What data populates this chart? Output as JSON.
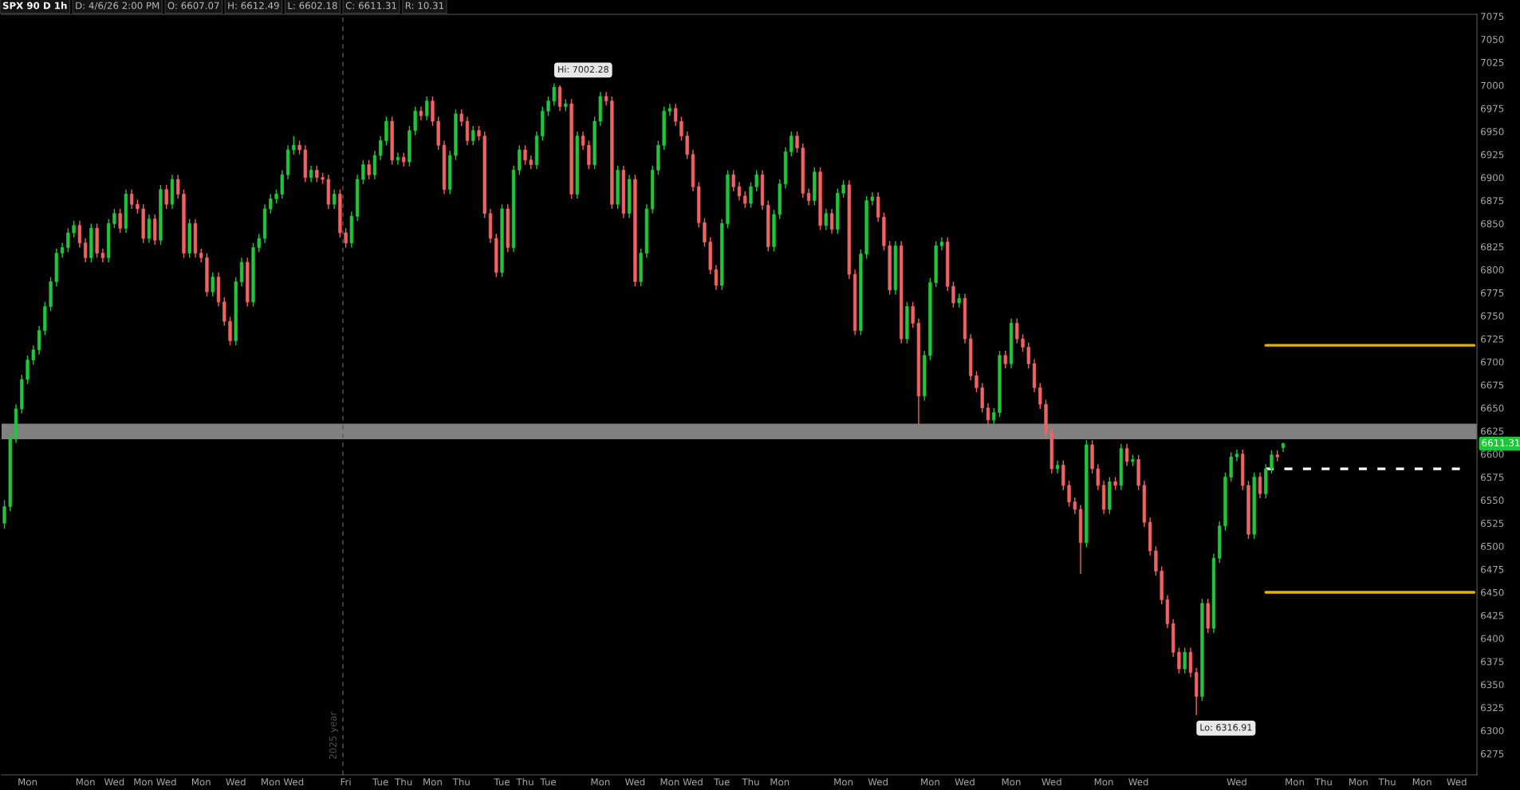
{
  "chart_data": {
    "type": "candlestick",
    "title": "SPX 90 D 1h",
    "annotations": [
      "D: 4/6/26 2:00 PM",
      "O: 6607.07",
      "H: 6612.49",
      "L: 6602.18",
      "C: 6611.31",
      "R: 10.31",
      "Hi: 7002.28",
      "Lo: 6316.91",
      "2025 year",
      "6611.31"
    ],
    "categories": [
      null,
      null,
      null,
      null,
      "Mon",
      null,
      null,
      null,
      null,
      null,
      null,
      null,
      null,
      null,
      "Mon",
      null,
      null,
      null,
      null,
      "Wed",
      null,
      null,
      null,
      null,
      "Mon",
      null,
      null,
      null,
      "Wed",
      null,
      null,
      null,
      null,
      null,
      "Mon",
      null,
      null,
      null,
      null,
      null,
      "Wed",
      null,
      null,
      null,
      null,
      null,
      "Mon",
      null,
      null,
      null,
      "Wed",
      null,
      null,
      null,
      null,
      null,
      null,
      null,
      null,
      "Fri",
      null,
      null,
      null,
      null,
      null,
      "Tue",
      null,
      null,
      null,
      "Thu",
      null,
      null,
      null,
      null,
      "Mon",
      null,
      null,
      null,
      null,
      "Thu",
      null,
      null,
      null,
      null,
      null,
      null,
      "Tue",
      null,
      null,
      null,
      "Thu",
      null,
      null,
      null,
      "Tue",
      null,
      null,
      null,
      null,
      null,
      null,
      null,
      null,
      "Mon",
      null,
      null,
      null,
      null,
      null,
      "Wed",
      null,
      null,
      null,
      null,
      null,
      "Mon",
      null,
      null,
      null,
      "Wed",
      null,
      null,
      null,
      null,
      "Tue",
      null,
      null,
      null,
      null,
      "Thu",
      null,
      null,
      null,
      null,
      "Mon",
      null,
      null,
      null,
      null,
      null,
      null,
      null,
      null,
      null,
      null,
      "Mon",
      null,
      null,
      null,
      null,
      null,
      "Wed",
      null,
      null,
      null,
      null,
      null,
      null,
      null,
      null,
      "Mon",
      null,
      null,
      null,
      null,
      null,
      "Wed",
      null,
      null,
      null,
      null,
      null,
      null,
      null,
      "Mon",
      null,
      null,
      null,
      null,
      null,
      null,
      "Wed",
      null,
      null,
      null,
      null,
      null,
      null,
      null,
      null,
      "Mon",
      null,
      null,
      null,
      null,
      null,
      "Wed",
      null,
      null,
      null,
      null,
      null,
      null,
      null,
      null,
      null,
      null,
      null,
      null,
      null,
      null,
      null,
      null,
      "Wed",
      null,
      null,
      null,
      null,
      null,
      null,
      null,
      null,
      null,
      "Mon",
      null,
      null,
      null,
      null,
      "Thu",
      null,
      null,
      null,
      null,
      null,
      "Mon",
      null,
      null,
      null,
      null,
      "Thu",
      null,
      null,
      null,
      null,
      null,
      "Mon",
      null,
      null,
      null,
      null,
      null,
      "Wed",
      null,
      null,
      null
    ],
    "ohlc": [
      [
        6525,
        6550,
        6519,
        6543
      ],
      [
        6543,
        6622,
        6538,
        6617
      ],
      [
        6617,
        6654,
        6612,
        6649
      ],
      [
        6649,
        6686,
        6644,
        6681
      ],
      [
        6681,
        6707,
        6676,
        6702
      ],
      [
        6702,
        6718,
        6697,
        6713
      ],
      [
        6713,
        6739,
        6708,
        6734
      ],
      [
        6734,
        6765,
        6729,
        6760
      ],
      [
        6760,
        6792,
        6755,
        6787
      ],
      [
        6787,
        6823,
        6782,
        6818
      ],
      [
        6818,
        6829,
        6813,
        6824
      ],
      [
        6824,
        6845,
        6819,
        6840
      ],
      [
        6840,
        6853,
        6835,
        6848
      ],
      [
        6848,
        6853,
        6824,
        6829
      ],
      [
        6829,
        6834,
        6808,
        6813
      ],
      [
        6813,
        6850,
        6808,
        6845
      ],
      [
        6845,
        6850,
        6813,
        6818
      ],
      [
        6818,
        6823,
        6808,
        6813
      ],
      [
        6813,
        6855,
        6808,
        6850
      ],
      [
        6850,
        6866,
        6845,
        6861
      ],
      [
        6861,
        6866,
        6840,
        6845
      ],
      [
        6845,
        6887,
        6840,
        6882
      ],
      [
        6882,
        6887,
        6866,
        6871
      ],
      [
        6871,
        6876,
        6861,
        6866
      ],
      [
        6866,
        6871,
        6829,
        6834
      ],
      [
        6834,
        6860,
        6829,
        6855
      ],
      [
        6855,
        6860,
        6827,
        6832
      ],
      [
        6832,
        6892,
        6827,
        6887
      ],
      [
        6887,
        6892,
        6866,
        6871
      ],
      [
        6871,
        6903,
        6866,
        6898
      ],
      [
        6898,
        6903,
        6877,
        6882
      ],
      [
        6882,
        6887,
        6813,
        6818
      ],
      [
        6818,
        6855,
        6813,
        6850
      ],
      [
        6850,
        6855,
        6813,
        6818
      ],
      [
        6818,
        6823,
        6808,
        6813
      ],
      [
        6813,
        6818,
        6771,
        6776
      ],
      [
        6776,
        6797,
        6771,
        6792
      ],
      [
        6792,
        6797,
        6760,
        6765
      ],
      [
        6765,
        6770,
        6739,
        6744
      ],
      [
        6744,
        6749,
        6718,
        6723
      ],
      [
        6723,
        6792,
        6718,
        6787
      ],
      [
        6787,
        6813,
        6782,
        6808
      ],
      [
        6808,
        6813,
        6760,
        6765
      ],
      [
        6765,
        6829,
        6760,
        6824
      ],
      [
        6824,
        6839,
        6819,
        6834
      ],
      [
        6834,
        6871,
        6829,
        6866
      ],
      [
        6866,
        6882,
        6861,
        6877
      ],
      [
        6877,
        6887,
        6872,
        6882
      ],
      [
        6882,
        6908,
        6877,
        6903
      ],
      [
        6903,
        6935,
        6898,
        6930
      ],
      [
        6930,
        6945,
        6925,
        6935
      ],
      [
        6935,
        6940,
        6925,
        6930
      ],
      [
        6930,
        6935,
        6895,
        6900
      ],
      [
        6900,
        6913,
        6895,
        6908
      ],
      [
        6908,
        6913,
        6895,
        6900
      ],
      [
        6900,
        6905,
        6893,
        6898
      ],
      [
        6898,
        6903,
        6866,
        6871
      ],
      [
        6871,
        6887,
        6866,
        6882
      ],
      [
        6882,
        6887,
        6835,
        6840
      ],
      [
        6840,
        6845,
        6824,
        6829
      ],
      [
        6829,
        6863,
        6824,
        6858
      ],
      [
        6858,
        6903,
        6853,
        6898
      ],
      [
        6898,
        6919,
        6893,
        6914
      ],
      [
        6914,
        6919,
        6898,
        6903
      ],
      [
        6903,
        6929,
        6898,
        6924
      ],
      [
        6924,
        6945,
        6919,
        6940
      ],
      [
        6940,
        6966,
        6935,
        6961
      ],
      [
        6961,
        6966,
        6914,
        6919
      ],
      [
        6919,
        6927,
        6914,
        6922
      ],
      [
        6922,
        6927,
        6912,
        6917
      ],
      [
        6917,
        6956,
        6912,
        6951
      ],
      [
        6951,
        6977,
        6946,
        6972
      ],
      [
        6972,
        6977,
        6962,
        6967
      ],
      [
        6967,
        6988,
        6962,
        6983
      ],
      [
        6983,
        6988,
        6956,
        6961
      ],
      [
        6961,
        6966,
        6930,
        6935
      ],
      [
        6935,
        6940,
        6882,
        6887
      ],
      [
        6887,
        6929,
        6882,
        6924
      ],
      [
        6924,
        6974,
        6919,
        6969
      ],
      [
        6969,
        6974,
        6956,
        6961
      ],
      [
        6961,
        6966,
        6935,
        6940
      ],
      [
        6940,
        6956,
        6935,
        6951
      ],
      [
        6951,
        6956,
        6940,
        6945
      ],
      [
        6945,
        6950,
        6856,
        6861
      ],
      [
        6861,
        6866,
        6829,
        6834
      ],
      [
        6834,
        6839,
        6792,
        6797
      ],
      [
        6797,
        6871,
        6792,
        6866
      ],
      [
        6866,
        6871,
        6819,
        6824
      ],
      [
        6824,
        6913,
        6819,
        6908
      ],
      [
        6908,
        6935,
        6903,
        6930
      ],
      [
        6930,
        6935,
        6914,
        6919
      ],
      [
        6919,
        6924,
        6909,
        6914
      ],
      [
        6914,
        6950,
        6909,
        6945
      ],
      [
        6945,
        6977,
        6940,
        6972
      ],
      [
        6972,
        6988,
        6967,
        6983
      ],
      [
        6983,
        7002.28,
        6978,
        6998
      ],
      [
        6998,
        7000,
        6972,
        6977
      ],
      [
        6977,
        6985,
        6972,
        6980
      ],
      [
        6980,
        6985,
        6877,
        6882
      ],
      [
        6882,
        6950,
        6877,
        6945
      ],
      [
        6945,
        6950,
        6930,
        6935
      ],
      [
        6935,
        6940,
        6909,
        6914
      ],
      [
        6914,
        6966,
        6909,
        6961
      ],
      [
        6961,
        6993,
        6956,
        6988
      ],
      [
        6988,
        6993,
        6978,
        6983
      ],
      [
        6983,
        6988,
        6866,
        6871
      ],
      [
        6871,
        6913,
        6866,
        6908
      ],
      [
        6908,
        6913,
        6856,
        6861
      ],
      [
        6861,
        6903,
        6856,
        6898
      ],
      [
        6898,
        6903,
        6782,
        6787
      ],
      [
        6787,
        6823,
        6782,
        6818
      ],
      [
        6818,
        6871,
        6813,
        6866
      ],
      [
        6866,
        6913,
        6861,
        6908
      ],
      [
        6908,
        6940,
        6903,
        6935
      ],
      [
        6935,
        6977,
        6930,
        6972
      ],
      [
        6972,
        6980,
        6967,
        6975
      ],
      [
        6975,
        6980,
        6956,
        6961
      ],
      [
        6961,
        6966,
        6940,
        6945
      ],
      [
        6945,
        6950,
        6920,
        6925
      ],
      [
        6925,
        6930,
        6885,
        6890
      ],
      [
        6890,
        6895,
        6846,
        6851
      ],
      [
        6851,
        6856,
        6825,
        6830
      ],
      [
        6830,
        6835,
        6795,
        6800
      ],
      [
        6800,
        6805,
        6778,
        6783
      ],
      [
        6783,
        6855,
        6778,
        6850
      ],
      [
        6850,
        6908,
        6845,
        6903
      ],
      [
        6903,
        6908,
        6885,
        6890
      ],
      [
        6890,
        6895,
        6875,
        6880
      ],
      [
        6880,
        6885,
        6867,
        6872
      ],
      [
        6872,
        6895,
        6867,
        6890
      ],
      [
        6890,
        6908,
        6885,
        6903
      ],
      [
        6903,
        6908,
        6865,
        6870
      ],
      [
        6870,
        6875,
        6820,
        6825
      ],
      [
        6825,
        6865,
        6820,
        6860
      ],
      [
        6860,
        6898,
        6855,
        6893
      ],
      [
        6893,
        6933,
        6888,
        6928
      ],
      [
        6928,
        6950,
        6923,
        6945
      ],
      [
        6945,
        6950,
        6927,
        6932
      ],
      [
        6932,
        6937,
        6878,
        6883
      ],
      [
        6883,
        6888,
        6870,
        6875
      ],
      [
        6875,
        6911,
        6870,
        6906
      ],
      [
        6906,
        6911,
        6843,
        6848
      ],
      [
        6848,
        6866,
        6843,
        6861
      ],
      [
        6861,
        6866,
        6839,
        6844
      ],
      [
        6844,
        6888,
        6839,
        6883
      ],
      [
        6883,
        6897,
        6878,
        6892
      ],
      [
        6892,
        6897,
        6790,
        6795
      ],
      [
        6795,
        6800,
        6729,
        6734
      ],
      [
        6734,
        6822,
        6729,
        6817
      ],
      [
        6817,
        6880,
        6812,
        6875
      ],
      [
        6875,
        6884,
        6870,
        6879
      ],
      [
        6879,
        6884,
        6852,
        6857
      ],
      [
        6857,
        6862,
        6821,
        6826
      ],
      [
        6826,
        6831,
        6773,
        6778
      ],
      [
        6778,
        6831,
        6773,
        6826
      ],
      [
        6826,
        6831,
        6720,
        6725
      ],
      [
        6725,
        6765,
        6720,
        6760
      ],
      [
        6760,
        6765,
        6737,
        6742
      ],
      [
        6742,
        6747,
        6632,
        6663
      ],
      [
        6663,
        6712,
        6658,
        6707
      ],
      [
        6707,
        6791,
        6702,
        6786
      ],
      [
        6786,
        6831,
        6781,
        6826
      ],
      [
        6826,
        6835,
        6821,
        6830
      ],
      [
        6830,
        6835,
        6777,
        6782
      ],
      [
        6782,
        6787,
        6759,
        6764
      ],
      [
        6764,
        6774,
        6759,
        6769
      ],
      [
        6769,
        6774,
        6720,
        6725
      ],
      [
        6725,
        6730,
        6680,
        6685
      ],
      [
        6685,
        6690,
        6667,
        6672
      ],
      [
        6672,
        6677,
        6645,
        6650
      ],
      [
        6650,
        6655,
        6632,
        6637
      ],
      [
        6637,
        6650,
        6632,
        6645
      ],
      [
        6645,
        6712,
        6640,
        6707
      ],
      [
        6707,
        6712,
        6693,
        6698
      ],
      [
        6698,
        6747,
        6693,
        6742
      ],
      [
        6742,
        6747,
        6720,
        6725
      ],
      [
        6725,
        6730,
        6711,
        6716
      ],
      [
        6716,
        6721,
        6693,
        6698
      ],
      [
        6698,
        6703,
        6667,
        6672
      ],
      [
        6672,
        6677,
        6649,
        6654
      ],
      [
        6654,
        6659,
        6618,
        6623
      ],
      [
        6623,
        6628,
        6579,
        6584
      ],
      [
        6584,
        6593,
        6579,
        6588
      ],
      [
        6588,
        6593,
        6561,
        6566
      ],
      [
        6566,
        6571,
        6543,
        6548
      ],
      [
        6548,
        6553,
        6535,
        6540
      ],
      [
        6540,
        6545,
        6470,
        6504
      ],
      [
        6504,
        6615,
        6499,
        6610
      ],
      [
        6610,
        6615,
        6579,
        6584
      ],
      [
        6584,
        6589,
        6561,
        6566
      ],
      [
        6566,
        6571,
        6535,
        6540
      ],
      [
        6540,
        6575,
        6535,
        6570
      ],
      [
        6570,
        6575,
        6561,
        6566
      ],
      [
        6566,
        6611,
        6561,
        6606
      ],
      [
        6606,
        6611,
        6587,
        6592
      ],
      [
        6592,
        6599,
        6587,
        6594
      ],
      [
        6594,
        6599,
        6561,
        6566
      ],
      [
        6566,
        6571,
        6521,
        6526
      ],
      [
        6526,
        6531,
        6490,
        6495
      ],
      [
        6495,
        6500,
        6468,
        6473
      ],
      [
        6473,
        6478,
        6437,
        6442
      ],
      [
        6442,
        6447,
        6411,
        6416
      ],
      [
        6416,
        6421,
        6380,
        6385
      ],
      [
        6385,
        6390,
        6362,
        6367
      ],
      [
        6367,
        6390,
        6362,
        6385
      ],
      [
        6385,
        6390,
        6358,
        6363
      ],
      [
        6363,
        6368,
        6316.91,
        6337
      ],
      [
        6337,
        6443,
        6332,
        6438
      ],
      [
        6438,
        6443,
        6406,
        6411
      ],
      [
        6411,
        6492,
        6406,
        6487
      ],
      [
        6487,
        6527,
        6482,
        6522
      ],
      [
        6522,
        6580,
        6517,
        6575
      ],
      [
        6575,
        6602,
        6570,
        6597
      ],
      [
        6597,
        6605,
        6592,
        6600
      ],
      [
        6600,
        6605,
        6561,
        6566
      ],
      [
        6566,
        6571,
        6508,
        6513
      ],
      [
        6513,
        6580,
        6508,
        6575
      ],
      [
        6575,
        6580,
        6552,
        6557
      ],
      [
        6557,
        6589,
        6552,
        6584
      ],
      [
        6584,
        6604,
        6579,
        6599
      ],
      [
        6599,
        6604,
        6592,
        6597
      ],
      [
        6607.07,
        6612.49,
        6602.18,
        6611.31
      ],
      null,
      null,
      null,
      null,
      null,
      null,
      null,
      null,
      null,
      null,
      null,
      null,
      null,
      null,
      null,
      null,
      null,
      null,
      null,
      null,
      null,
      null,
      null,
      null,
      null,
      null,
      null,
      null,
      null,
      null,
      null,
      null,
      null
    ],
    "colors": [
      "#1ec73a",
      "#1ec73a",
      "#1ec73a",
      "#1ec73a",
      "#1ec73a",
      "#1ec73a",
      "#1ec73a",
      "#1ec73a",
      "#1ec73a",
      "#1ec73a",
      "#1ec73a",
      "#1ec73a",
      "#1ec73a",
      "#f26262",
      "#f26262",
      "#1ec73a",
      "#f26262",
      "#f26262",
      "#1ec73a",
      "#1ec73a",
      "#f26262",
      "#1ec73a",
      "#f26262",
      "#f26262",
      "#f26262",
      "#1ec73a",
      "#f26262",
      "#1ec73a",
      "#f26262",
      "#1ec73a",
      "#f26262",
      "#f26262",
      "#1ec73a",
      "#f26262",
      "#f26262",
      "#f26262",
      "#1ec73a",
      "#f26262",
      "#f26262",
      "#f26262",
      "#1ec73a",
      "#1ec73a",
      "#f26262",
      "#1ec73a",
      "#1ec73a",
      "#1ec73a",
      "#1ec73a",
      "#1ec73a",
      "#1ec73a",
      "#1ec73a",
      "#1ec73a",
      "#f26262",
      "#f26262",
      "#1ec73a",
      "#f26262",
      "#f26262",
      "#f26262",
      "#1ec73a",
      "#f26262",
      "#f26262",
      "#1ec73a",
      "#1ec73a",
      "#1ec73a",
      "#f26262",
      "#1ec73a",
      "#1ec73a",
      "#1ec73a",
      "#f26262",
      "#1ec73a",
      "#f26262",
      "#1ec73a",
      "#1ec73a",
      "#f26262",
      "#1ec73a",
      "#f26262",
      "#f26262",
      "#f26262",
      "#1ec73a",
      "#1ec73a",
      "#f26262",
      "#f26262",
      "#1ec73a",
      "#f26262",
      "#f26262",
      "#f26262",
      "#f26262",
      "#1ec73a",
      "#f26262",
      "#1ec73a",
      "#1ec73a",
      "#f26262",
      "#f26262",
      "#1ec73a",
      "#1ec73a",
      "#1ec73a",
      "#1ec73a",
      "#f26262",
      "#1ec73a",
      "#f26262",
      "#1ec73a",
      "#f26262",
      "#f26262",
      "#1ec73a",
      "#1ec73a",
      "#f26262",
      "#f26262",
      "#1ec73a",
      "#f26262",
      "#1ec73a",
      "#f26262",
      "#1ec73a",
      "#1ec73a",
      "#1ec73a",
      "#1ec73a",
      "#1ec73a",
      "#1ec73a",
      "#f26262",
      "#f26262",
      "#f26262",
      "#f26262",
      "#f26262",
      "#f26262",
      "#f26262",
      "#f26262",
      "#1ec73a",
      "#1ec73a",
      "#f26262",
      "#f26262",
      "#f26262",
      "#1ec73a",
      "#1ec73a",
      "#f26262",
      "#f26262",
      "#1ec73a",
      "#1ec73a",
      "#1ec73a",
      "#1ec73a",
      "#f26262",
      "#f26262",
      "#f26262",
      "#1ec73a",
      "#f26262",
      "#1ec73a",
      "#f26262",
      "#1ec73a",
      "#1ec73a",
      "#f26262",
      "#f26262",
      "#1ec73a",
      "#1ec73a",
      "#1ec73a",
      "#f26262",
      "#f26262",
      "#f26262",
      "#1ec73a",
      "#f26262",
      "#1ec73a",
      "#f26262",
      "#f26262",
      "#1ec73a",
      "#1ec73a",
      "#1ec73a",
      "#1ec73a",
      "#f26262",
      "#f26262",
      "#1ec73a",
      "#f26262",
      "#f26262",
      "#f26262",
      "#f26262",
      "#f26262",
      "#1ec73a",
      "#1ec73a",
      "#f26262",
      "#1ec73a",
      "#f26262",
      "#f26262",
      "#f26262",
      "#f26262",
      "#f26262",
      "#f26262",
      "#f26262",
      "#1ec73a",
      "#f26262",
      "#f26262",
      "#f26262",
      "#f26262",
      "#1ec73a",
      "#f26262",
      "#f26262",
      "#f26262",
      "#1ec73a",
      "#f26262",
      "#1ec73a",
      "#f26262",
      "#1ec73a",
      "#f26262",
      "#f26262",
      "#f26262",
      "#f26262",
      "#f26262",
      "#f26262",
      "#f26262",
      "#f26262",
      "#1ec73a",
      "#f26262",
      "#f26262",
      "#1ec73a",
      "#f26262",
      "#1ec73a",
      "#1ec73a",
      "#1ec73a",
      "#1ec73a",
      "#1ec73a",
      "#f26262",
      "#f26262",
      "#1ec73a",
      "#f26262",
      "#1ec73a",
      "#1ec73a",
      "#f26262",
      "#1ec73a",
      null,
      null,
      null,
      null,
      null,
      null,
      null,
      null,
      null,
      null,
      null,
      null,
      null,
      null,
      null,
      null,
      null,
      null,
      null,
      null,
      null,
      null,
      null,
      null,
      null,
      null,
      null,
      null,
      null,
      null,
      null,
      null,
      null
    ],
    "series": [
      {
        "type": "line",
        "color": "#e6b400",
        "line_style": "solid",
        "values": [
          null,
          null,
          null,
          null,
          null,
          null,
          null,
          null,
          null,
          null,
          null,
          null,
          null,
          null,
          null,
          null,
          null,
          null,
          null,
          null,
          null,
          null,
          null,
          null,
          null,
          null,
          null,
          null,
          null,
          null,
          null,
          null,
          null,
          null,
          null,
          null,
          null,
          null,
          null,
          null,
          null,
          null,
          null,
          null,
          null,
          null,
          null,
          null,
          null,
          null,
          null,
          null,
          null,
          null,
          null,
          null,
          null,
          null,
          null,
          null,
          null,
          null,
          null,
          null,
          null,
          null,
          null,
          null,
          null,
          null,
          null,
          null,
          null,
          null,
          null,
          null,
          null,
          null,
          null,
          null,
          null,
          null,
          null,
          null,
          null,
          null,
          null,
          null,
          null,
          null,
          null,
          null,
          null,
          null,
          null,
          null,
          null,
          null,
          null,
          null,
          null,
          null,
          null,
          null,
          null,
          null,
          null,
          null,
          null,
          null,
          null,
          null,
          null,
          null,
          null,
          null,
          null,
          null,
          null,
          null,
          null,
          null,
          null,
          null,
          null,
          null,
          null,
          null,
          null,
          null,
          null,
          null,
          null,
          null,
          null,
          null,
          null,
          null,
          null,
          null,
          null,
          null,
          null,
          null,
          null,
          null,
          null,
          null,
          null,
          null,
          null,
          null,
          null,
          null,
          null,
          null,
          null,
          null,
          null,
          null,
          null,
          null,
          null,
          null,
          null,
          null,
          null,
          null,
          null,
          null,
          null,
          null,
          null,
          null,
          null,
          null,
          null,
          null,
          null,
          null,
          null,
          null,
          null,
          null,
          null,
          null,
          null,
          null,
          null,
          null,
          null,
          null,
          null,
          null,
          null,
          null,
          null,
          null,
          null,
          null,
          null,
          null,
          null,
          null,
          null,
          null,
          null,
          null,
          null,
          null,
          null,
          null,
          null,
          null,
          null,
          null,
          null,
          null,
          6718,
          6718,
          6718,
          6718,
          6718,
          6718,
          6718,
          6718,
          6718,
          6718,
          6718,
          6718,
          6718,
          6718,
          6718,
          6718,
          6718,
          6718,
          6718,
          6718,
          6718,
          6718,
          6718,
          6718,
          6718,
          6718,
          6718,
          6718,
          6718,
          6718,
          6718,
          6718,
          6718,
          6718,
          6718,
          6718,
          6718
        ]
      },
      {
        "type": "line",
        "color": "#e6b400",
        "line_style": "solid",
        "values": [
          null,
          null,
          null,
          null,
          null,
          null,
          null,
          null,
          null,
          null,
          null,
          null,
          null,
          null,
          null,
          null,
          null,
          null,
          null,
          null,
          null,
          null,
          null,
          null,
          null,
          null,
          null,
          null,
          null,
          null,
          null,
          null,
          null,
          null,
          null,
          null,
          null,
          null,
          null,
          null,
          null,
          null,
          null,
          null,
          null,
          null,
          null,
          null,
          null,
          null,
          null,
          null,
          null,
          null,
          null,
          null,
          null,
          null,
          null,
          null,
          null,
          null,
          null,
          null,
          null,
          null,
          null,
          null,
          null,
          null,
          null,
          null,
          null,
          null,
          null,
          null,
          null,
          null,
          null,
          null,
          null,
          null,
          null,
          null,
          null,
          null,
          null,
          null,
          null,
          null,
          null,
          null,
          null,
          null,
          null,
          null,
          null,
          null,
          null,
          null,
          null,
          null,
          null,
          null,
          null,
          null,
          null,
          null,
          null,
          null,
          null,
          null,
          null,
          null,
          null,
          null,
          null,
          null,
          null,
          null,
          null,
          null,
          null,
          null,
          null,
          null,
          null,
          null,
          null,
          null,
          null,
          null,
          null,
          null,
          null,
          null,
          null,
          null,
          null,
          null,
          null,
          null,
          null,
          null,
          null,
          null,
          null,
          null,
          null,
          null,
          null,
          null,
          null,
          null,
          null,
          null,
          null,
          null,
          null,
          null,
          null,
          null,
          null,
          null,
          null,
          null,
          null,
          null,
          null,
          null,
          null,
          null,
          null,
          null,
          null,
          null,
          null,
          null,
          null,
          null,
          null,
          null,
          null,
          null,
          null,
          null,
          null,
          null,
          null,
          null,
          null,
          null,
          null,
          null,
          null,
          null,
          null,
          null,
          null,
          null,
          null,
          null,
          null,
          null,
          null,
          null,
          null,
          null,
          null,
          null,
          null,
          null,
          null,
          null,
          null,
          null,
          null,
          null,
          6450,
          6450,
          6450,
          6450,
          6450,
          6450,
          6450,
          6450,
          6450,
          6450,
          6450,
          6450,
          6450,
          6450,
          6450,
          6450,
          6450,
          6450,
          6450,
          6450,
          6450,
          6450,
          6450,
          6450,
          6450,
          6450,
          6450,
          6450,
          6450,
          6450,
          6450,
          6450,
          6450,
          6450,
          6450,
          6450,
          6450
        ]
      },
      {
        "type": "line",
        "color": "#ffffff",
        "line_style": "dotted",
        "values": [
          null,
          null,
          null,
          null,
          null,
          null,
          null,
          null,
          null,
          null,
          null,
          null,
          null,
          null,
          null,
          null,
          null,
          null,
          null,
          null,
          null,
          null,
          null,
          null,
          null,
          null,
          null,
          null,
          null,
          null,
          null,
          null,
          null,
          null,
          null,
          null,
          null,
          null,
          null,
          null,
          null,
          null,
          null,
          null,
          null,
          null,
          null,
          null,
          null,
          null,
          null,
          null,
          null,
          null,
          null,
          null,
          null,
          null,
          null,
          null,
          null,
          null,
          null,
          null,
          null,
          null,
          null,
          null,
          null,
          null,
          null,
          null,
          null,
          null,
          null,
          null,
          null,
          null,
          null,
          null,
          null,
          null,
          null,
          null,
          null,
          null,
          null,
          null,
          null,
          null,
          null,
          null,
          null,
          null,
          null,
          null,
          null,
          null,
          null,
          null,
          null,
          null,
          null,
          null,
          null,
          null,
          null,
          null,
          null,
          null,
          null,
          null,
          null,
          null,
          null,
          null,
          null,
          null,
          null,
          null,
          null,
          null,
          null,
          null,
          null,
          null,
          null,
          null,
          null,
          null,
          null,
          null,
          null,
          null,
          null,
          null,
          null,
          null,
          null,
          null,
          null,
          null,
          null,
          null,
          null,
          null,
          null,
          null,
          null,
          null,
          null,
          null,
          null,
          null,
          null,
          null,
          null,
          null,
          null,
          null,
          null,
          null,
          null,
          null,
          null,
          null,
          null,
          null,
          null,
          null,
          null,
          null,
          null,
          null,
          null,
          null,
          null,
          null,
          null,
          null,
          null,
          null,
          null,
          null,
          null,
          null,
          null,
          null,
          null,
          null,
          null,
          null,
          null,
          null,
          null,
          null,
          null,
          null,
          null,
          null,
          null,
          null,
          null,
          null,
          null,
          null,
          null,
          null,
          null,
          null,
          null,
          null,
          null,
          null,
          null,
          null,
          null,
          null,
          6584,
          6584,
          6584,
          6584,
          6584,
          6584,
          6584,
          6584,
          6584,
          6584,
          6584,
          6584,
          6584,
          6584,
          6584,
          6584,
          6584,
          6584,
          6584,
          6584,
          6584,
          6584,
          6584,
          6584,
          6584,
          6584,
          6584,
          6584,
          6584,
          6584,
          6584,
          6584,
          6584,
          6584,
          6584,
          null,
          null
        ]
      }
    ],
    "bands": [
      {
        "axis": "y",
        "from": 6616,
        "to": 6633,
        "color": "#808080"
      }
    ],
    "ylim": [
      6252,
      7077
    ],
    "yticks": [
      6275,
      6300,
      6325,
      6350,
      6375,
      6400,
      6425,
      6450,
      6475,
      6500,
      6525,
      6550,
      6575,
      6600,
      6625,
      6650,
      6675,
      6700,
      6725,
      6750,
      6775,
      6800,
      6825,
      6850,
      6875,
      6900,
      6925,
      6950,
      6975,
      7000,
      7025,
      7050,
      7075
    ],
    "grid": false,
    "legend": false
  }
}
